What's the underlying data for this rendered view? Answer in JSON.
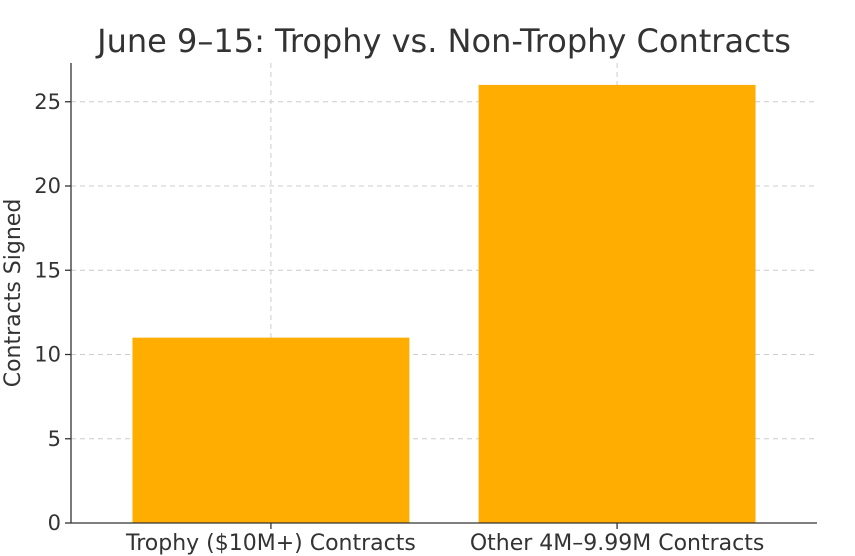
{
  "chart_data": {
    "type": "bar",
    "title": "June 9–15: Trophy vs. Non-Trophy Contracts",
    "xlabel": "",
    "ylabel": "Contracts Signed",
    "categories": [
      "Trophy ($10M+) Contracts",
      "Other 4M–9.99M Contracts"
    ],
    "values": [
      11,
      26
    ],
    "ylim": [
      0,
      27.3
    ],
    "yticks": [
      "0",
      "5",
      "10",
      "15",
      "20",
      "25"
    ],
    "grid": true,
    "bar_color": "#ffad00"
  }
}
